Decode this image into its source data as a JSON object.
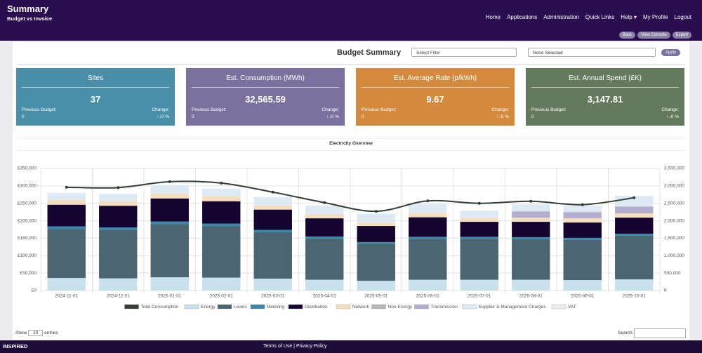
{
  "header": {
    "title": "Summary",
    "subtitle": "Budget vs Invoice",
    "nav": [
      "Home",
      "Applications",
      "Administration",
      "Quick Links",
      "Help ▾",
      "My Profile",
      "Logout"
    ],
    "buttons": [
      "Back",
      "View Console",
      "Export"
    ]
  },
  "panel": {
    "title": "Budget Summary",
    "filter": "Select Filter",
    "selection": "None Selected",
    "apply": "Apply"
  },
  "cards": [
    {
      "title": "Sites",
      "value": "37",
      "previous_label": "Previous Budget:",
      "previous": "0",
      "change_label": "Change:",
      "change": "↑↓0 %",
      "color": "#4a8ea8"
    },
    {
      "title": "Est. Consumption (MWh)",
      "value": "32,565.59",
      "previous_label": "Previous Budget:",
      "previous": "0",
      "change_label": "Change:",
      "change": "↑↓0 %",
      "color": "#7a719f"
    },
    {
      "title": "Est. Average Rate (p/kWh)",
      "value": "9.67",
      "previous_label": "Previous Budget:",
      "previous": "0",
      "change_label": "Change:",
      "change": "↑↓0 %",
      "color": "#d38a3f"
    },
    {
      "title": "Est. Annual Spend (£K)",
      "value": "3,147.81",
      "previous_label": "Previous Budget:",
      "previous": "0",
      "change_label": "Change:",
      "change": "↑↓0 %",
      "color": "#65795c"
    }
  ],
  "chart": {
    "type": "bar",
    "stacked": true,
    "title": "Electricity Overview",
    "categories": [
      "2024-11-01",
      "2024-12-01",
      "2025-01-01",
      "2025-02-01",
      "2025-03-01",
      "2025-04-01",
      "2025-05-01",
      "2025-06-01",
      "2025-07-01",
      "2025-08-01",
      "2025-09-01",
      "2025-10-01"
    ],
    "ylim": [
      0,
      350000
    ],
    "yticks": [
      {
        "value": 0,
        "label": "£0"
      },
      {
        "value": 50000,
        "label": "£50,000"
      },
      {
        "value": 100000,
        "label": "£100,000"
      },
      {
        "value": 150000,
        "label": "£150,000"
      },
      {
        "value": 200000,
        "label": "£200,000"
      },
      {
        "value": 250000,
        "label": "£250,000"
      },
      {
        "value": 300000,
        "label": "£300,000"
      },
      {
        "value": 350000,
        "label": "£350,000"
      }
    ],
    "y2lim": [
      0,
      3500000
    ],
    "y2ticks": [
      0,
      {
        "value": 500000,
        "label": "500,000"
      },
      {
        "value": 1000000,
        "label": "1,000,000"
      },
      {
        "value": 1500000,
        "label": "1,500,000"
      },
      {
        "value": 2000000,
        "label": "2,000,000"
      },
      {
        "value": 2500000,
        "label": "2,500,000"
      },
      {
        "value": 3000000,
        "label": "3,000,000"
      },
      {
        "value": 3500000,
        "label": "3,500,000"
      }
    ],
    "grid": true,
    "series": [
      {
        "name": "Total Consumption",
        "type": "line",
        "axis": "y2",
        "color": "#333d33",
        "values": [
          2960000,
          2950000,
          3120000,
          3080000,
          2820000,
          2520000,
          2270000,
          2570000,
          2500000,
          2560000,
          2460000,
          2660000
        ]
      },
      {
        "name": "Energy",
        "color": "#c9e1ec",
        "values": [
          36000,
          35000,
          38000,
          37000,
          34000,
          31000,
          28000,
          31000,
          31000,
          31000,
          30000,
          32000
        ]
      },
      {
        "name": "Levies",
        "color": "#4b6670",
        "values": [
          140000,
          138000,
          152000,
          147000,
          133000,
          118000,
          106000,
          117000,
          117000,
          116000,
          115000,
          125000
        ]
      },
      {
        "name": "Metering",
        "color": "#3e86a8",
        "values": [
          8000,
          8000,
          8000,
          8000,
          7000,
          6000,
          5000,
          6000,
          6000,
          6000,
          6000,
          6000
        ]
      },
      {
        "name": "Distribution",
        "color": "#150530",
        "values": [
          62000,
          62000,
          66000,
          64000,
          58000,
          52000,
          46000,
          56000,
          43000,
          44000,
          44000,
          46000
        ]
      },
      {
        "name": "Network",
        "color": "#f3dfc0",
        "values": [
          14000,
          14000,
          14000,
          14000,
          12000,
          12000,
          10000,
          12000,
          12000,
          12000,
          12000,
          12000
        ]
      },
      {
        "name": "Non-Energy",
        "color": "#b8b8b8",
        "values": [
          0,
          0,
          0,
          0,
          0,
          0,
          0,
          0,
          0,
          0,
          0,
          0
        ]
      },
      {
        "name": "Transmission",
        "color": "#b3aece",
        "values": [
          0,
          0,
          0,
          0,
          0,
          0,
          0,
          0,
          0,
          18000,
          18000,
          20000
        ]
      },
      {
        "name": "Supplier & Management Charges",
        "color": "#dde9f3",
        "values": [
          20000,
          20000,
          24000,
          22000,
          24000,
          25000,
          25000,
          26000,
          20000,
          20000,
          18000,
          30000
        ]
      },
      {
        "name": "VAT",
        "color": "#ececec",
        "values": [
          0,
          0,
          0,
          0,
          0,
          0,
          0,
          0,
          0,
          0,
          0,
          0
        ]
      }
    ]
  },
  "table": {
    "show": "Show",
    "length": "10",
    "entries": "entries",
    "search": "Search:"
  },
  "footer": {
    "brand": "INSPIRED",
    "links": [
      "Terms of Use",
      "Privacy Policy"
    ]
  }
}
